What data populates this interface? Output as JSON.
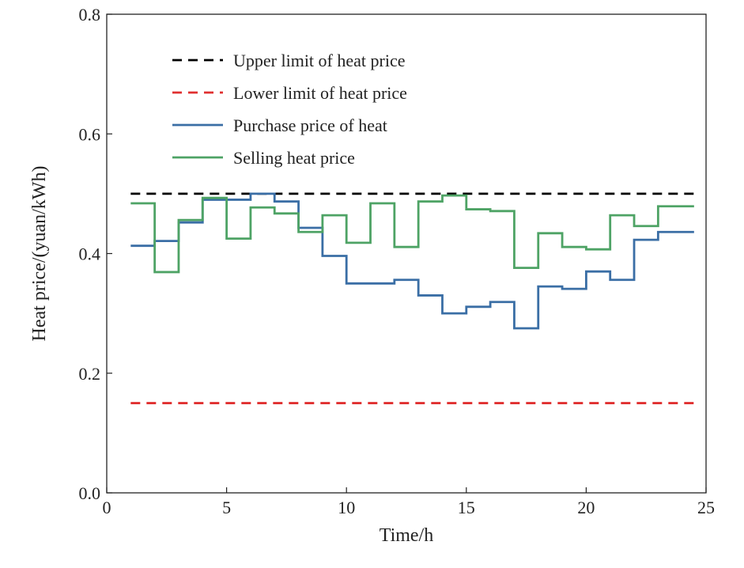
{
  "chart_data": {
    "type": "line",
    "step": "post",
    "xlabel": "Time/h",
    "ylabel": "Heat price/(yuan/kWh)",
    "xlim": [
      0,
      25
    ],
    "ylim": [
      0.0,
      0.8
    ],
    "xticks": [
      0,
      5,
      10,
      15,
      20,
      25
    ],
    "xtick_labels": [
      "0",
      "5",
      "10",
      "15",
      "20",
      "25"
    ],
    "yticks": [
      0.0,
      0.2,
      0.4,
      0.6,
      0.8
    ],
    "ytick_labels": [
      "0.0",
      "0.2",
      "0.4",
      "0.6",
      "0.8"
    ],
    "grid": false,
    "legend_position": "top-left",
    "x": [
      1,
      2,
      3,
      4,
      5,
      6,
      7,
      8,
      9,
      10,
      11,
      12,
      13,
      14,
      15,
      16,
      17,
      18,
      19,
      20,
      21,
      22,
      23,
      24.5
    ],
    "series": [
      {
        "name": "Upper limit of heat price",
        "style": "dashed",
        "color": "#000000",
        "values": [
          0.5,
          0.5,
          0.5,
          0.5,
          0.5,
          0.5,
          0.5,
          0.5,
          0.5,
          0.5,
          0.5,
          0.5,
          0.5,
          0.5,
          0.5,
          0.5,
          0.5,
          0.5,
          0.5,
          0.5,
          0.5,
          0.5,
          0.5,
          0.5
        ]
      },
      {
        "name": "Lower limit of heat price",
        "style": "dashed",
        "color": "#e03030",
        "values": [
          0.15,
          0.15,
          0.15,
          0.15,
          0.15,
          0.15,
          0.15,
          0.15,
          0.15,
          0.15,
          0.15,
          0.15,
          0.15,
          0.15,
          0.15,
          0.15,
          0.15,
          0.15,
          0.15,
          0.15,
          0.15,
          0.15,
          0.15,
          0.15
        ]
      },
      {
        "name": "Purchase price of heat",
        "style": "solid",
        "color": "#3a6ea5",
        "values": [
          0.413,
          0.421,
          0.452,
          0.49,
          0.49,
          0.5,
          0.487,
          0.443,
          0.396,
          0.35,
          0.35,
          0.356,
          0.33,
          0.3,
          0.311,
          0.319,
          0.275,
          0.345,
          0.341,
          0.37,
          0.356,
          0.423,
          0.436,
          0.436
        ]
      },
      {
        "name": "Selling heat price",
        "style": "solid",
        "color": "#4ea365",
        "values": [
          0.484,
          0.369,
          0.456,
          0.493,
          0.425,
          0.477,
          0.467,
          0.436,
          0.464,
          0.418,
          0.484,
          0.411,
          0.487,
          0.497,
          0.474,
          0.471,
          0.376,
          0.434,
          0.411,
          0.407,
          0.464,
          0.446,
          0.479,
          0.479
        ]
      }
    ]
  }
}
